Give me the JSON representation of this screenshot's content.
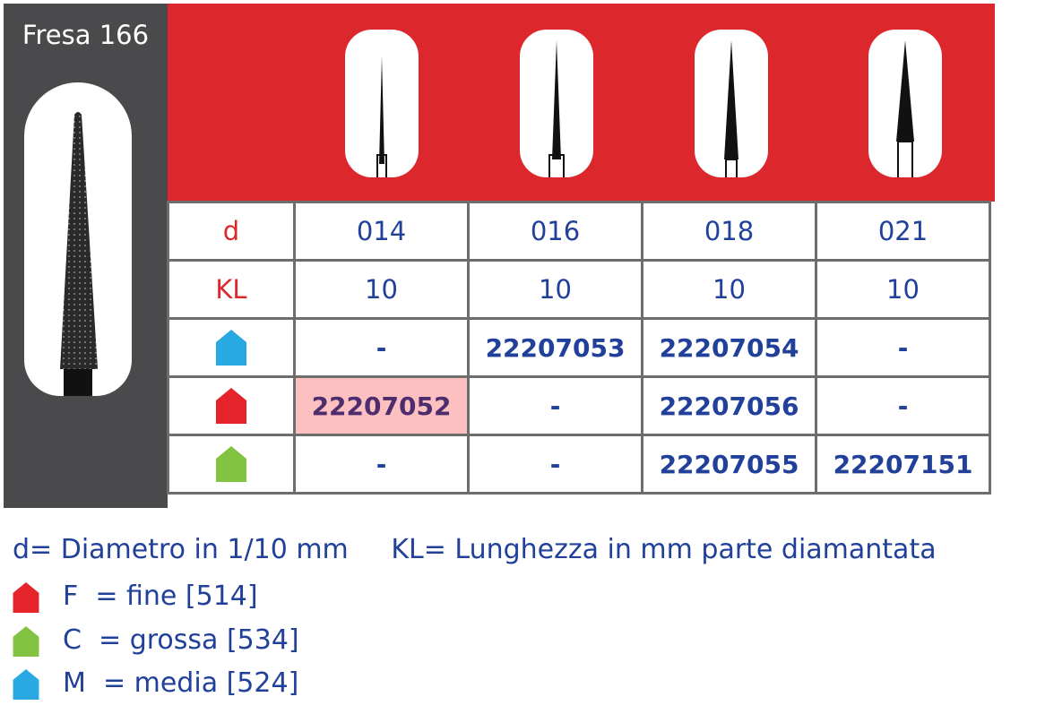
{
  "title": "Fresa 166",
  "colors": {
    "header": "#dc272d",
    "panel": "#4a4a4c",
    "text": "#21409a",
    "fine": "#e4232b",
    "grossa": "#82c341",
    "media": "#28a9e1",
    "highlight": "#fdc0c0"
  },
  "table": {
    "row_labels": {
      "d": "d",
      "kl": "KL"
    },
    "columns": [
      {
        "d": "014",
        "kl": "10",
        "media": "-",
        "fine": "22207052",
        "grossa": "-"
      },
      {
        "d": "016",
        "kl": "10",
        "media": "22207053",
        "fine": "-",
        "grossa": "-"
      },
      {
        "d": "018",
        "kl": "10",
        "media": "22207054",
        "fine": "22207056",
        "grossa": "22207055"
      },
      {
        "d": "021",
        "kl": "10",
        "media": "-",
        "fine": "-",
        "grossa": "22207151"
      }
    ]
  },
  "legend": {
    "d": "d= Diametro in 1/10 mm",
    "kl": "KL= Lunghezza in mm parte diamantata",
    "fine": "F  = fine [514]",
    "grossa": "C  = grossa [534]",
    "media": "M  = media [524]"
  }
}
